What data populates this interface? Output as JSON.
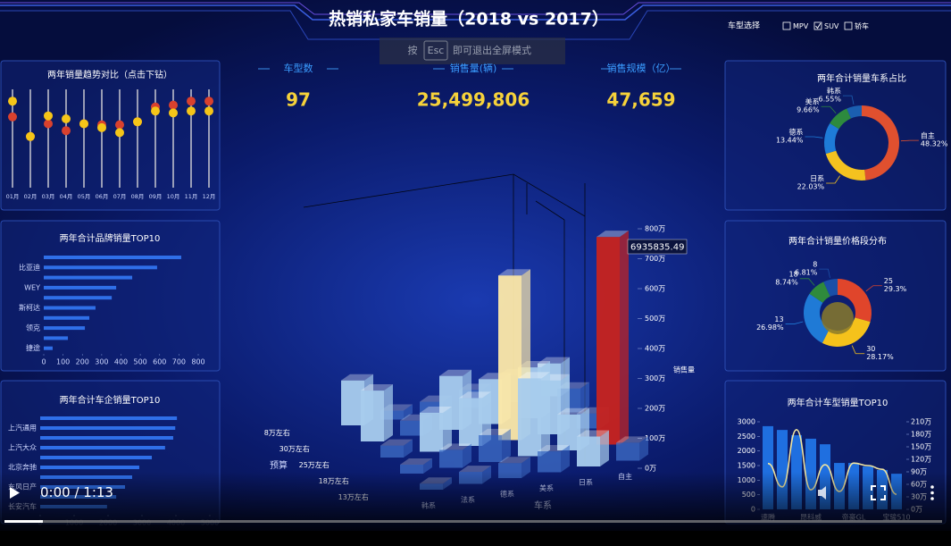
{
  "header": {
    "title": "热销私家车销量（2018 vs 2017）",
    "filter_label": "车型选择",
    "filter_options": [
      {
        "label": "MPV",
        "checked": false
      },
      {
        "label": "SUV",
        "checked": true
      },
      {
        "label": "轿车",
        "checked": false
      }
    ]
  },
  "fullscreen_hint": {
    "prefix": "按",
    "key": "Esc",
    "suffix": "即可退出全屏模式"
  },
  "kpis": [
    {
      "label": "车型数",
      "value": "97"
    },
    {
      "label": "销售量(辆)",
      "value": "25,499,806"
    },
    {
      "label": "销售规模（亿）",
      "value": "47,659"
    }
  ],
  "video": {
    "time": "0:00 / 1:13"
  },
  "chart_data": [
    {
      "type": "dumbbell",
      "title": "两年销量趋势对比（点击下钻）",
      "categories": [
        "01月",
        "02月",
        "03月",
        "04月",
        "05月",
        "06月",
        "07月",
        "08月",
        "09月",
        "10月",
        "11月",
        "12月"
      ],
      "series": [
        {
          "color": "#f5c518",
          "values": [
            88,
            52,
            73,
            70,
            65,
            61,
            56,
            67,
            78,
            76,
            78,
            78
          ]
        },
        {
          "color": "#d9412e",
          "values": [
            72,
            52,
            65,
            58,
            65,
            64,
            64,
            67,
            82,
            84,
            88,
            88
          ]
        }
      ],
      "ylim": [
        0,
        100
      ]
    },
    {
      "type": "hbar",
      "title": "两年合计品牌销量TOP10",
      "categories": [
        null,
        "比亚迪",
        null,
        "WEY",
        null,
        "斯柯达",
        null,
        "领克",
        null,
        "捷途"
      ],
      "values": [
        712,
        587,
        458,
        375,
        352,
        268,
        236,
        213,
        125,
        46
      ],
      "color": "#2f6fe8",
      "xlim": [
        0,
        800
      ],
      "xticks": [
        0,
        100,
        200,
        300,
        400,
        500,
        600,
        700,
        800
      ]
    },
    {
      "type": "hbar",
      "title": "两年合计车企销量TOP10",
      "categories": [
        null,
        "上汽通用",
        null,
        "上汽大众",
        null,
        "北京奔驰",
        null,
        "东风日产",
        null,
        "长安汽车"
      ],
      "values": [
        4030,
        3980,
        3920,
        3680,
        3290,
        2920,
        2710,
        2500,
        2240,
        1970
      ],
      "color": "#2f6fe8",
      "xlim": [
        0,
        5000
      ],
      "xticks": [
        0,
        1000,
        2000,
        3000,
        4000,
        5000
      ]
    },
    {
      "type": "bar3d",
      "categories": [
        "韩系",
        "法系",
        "德系",
        "美系",
        "日系",
        "自主"
      ],
      "xlabel": "车系",
      "zlabel": "预算",
      "ylabel": "销售量",
      "series": [
        {
          "name": "8万左右",
          "values": [
            1500000,
            300000,
            400000,
            600000,
            900000,
            1100000
          ]
        },
        {
          "name": "30万左右",
          "values": [
            1700000,
            500000,
            1800000,
            1500000,
            1700000,
            800000
          ]
        },
        {
          "name": "25万左右",
          "values": [
            400000,
            1300000,
            1600000,
            5500000,
            1800000,
            500000
          ]
        },
        {
          "name": "18万左右",
          "values": [
            300000,
            600000,
            900000,
            2600000,
            1200000,
            6935835.49
          ]
        },
        {
          "name": "13万左右",
          "values": [
            200000,
            400000,
            500000,
            700000,
            1000000,
            600000
          ]
        }
      ],
      "ylim": [
        0,
        8000000
      ],
      "yticks": [
        {
          "value": 0,
          "label": "0万"
        },
        {
          "value": 1000000,
          "label": "100万"
        },
        {
          "value": 2000000,
          "label": "200万"
        },
        {
          "value": 3000000,
          "label": "300万"
        },
        {
          "value": 4000000,
          "label": "400万"
        },
        {
          "value": 5000000,
          "label": "500万"
        },
        {
          "value": 6000000,
          "label": "600万"
        },
        {
          "value": 7000000,
          "label": "700万"
        },
        {
          "value": 8000000,
          "label": "800万"
        }
      ],
      "palette": [
        "#3f6fc8",
        "#a8cdee",
        "#fde9a8",
        "#c8231f"
      ]
    },
    {
      "type": "donut",
      "title": "两年合计销量车系占比",
      "categories": [
        "自主",
        "日系",
        "德系",
        "美系",
        "韩系"
      ],
      "values": [
        48.32,
        22.03,
        13.44,
        9.66,
        6.55
      ],
      "value_labels": [
        "48.32%",
        "22.03%",
        "13.44%",
        "9.66%",
        "6.55%"
      ],
      "colors": [
        "#e0502f",
        "#f4c21f",
        "#1e7bd8",
        "#2d8a3e",
        "#1b5fb0"
      ]
    },
    {
      "type": "donut",
      "title": "两年合计销量价格段分布",
      "categories": [
        "25",
        "30",
        "13",
        "18",
        "8"
      ],
      "values": [
        29.3,
        28.17,
        26.98,
        8.74,
        6.81
      ],
      "value_labels": [
        "29.3%",
        "28.17%",
        "26.98%",
        "8.74%",
        "6.81%"
      ],
      "colors": [
        "#e0452b",
        "#f5c21b",
        "#1f7ad6",
        "#2f8a3c",
        "#1a4fa8"
      ]
    },
    {
      "type": "combo",
      "title": "两年合计车型销量TOP10",
      "categories": [
        "速腾",
        null,
        null,
        "昂科威",
        null,
        null,
        "帝豪GL",
        null,
        null,
        "宝骏510"
      ],
      "series": [
        {
          "color": "#1f6fe0",
          "values": [
            2850,
            2720,
            2540,
            2420,
            2230,
            1590,
            1590,
            1470,
            1350,
            1220
          ]
        },
        {
          "axis": "y2",
          "color": "#f2e6a0",
          "values": [
            1100000,
            540000,
            1910000,
            470000,
            1070000,
            430000,
            1110000,
            1050000,
            960000,
            360000
          ]
        }
      ],
      "ylim": [
        0,
        3000
      ],
      "yticks": [
        0,
        500,
        1000,
        1500,
        2000,
        2500,
        3000
      ],
      "y2lim": [
        0,
        2100000
      ],
      "y2ticks": [
        {
          "value": 0,
          "label": "0万"
        },
        {
          "value": 300000,
          "label": "30万"
        },
        {
          "value": 600000,
          "label": "60万"
        },
        {
          "value": 900000,
          "label": "90万"
        },
        {
          "value": 1200000,
          "label": "120万"
        },
        {
          "value": 1500000,
          "label": "150万"
        },
        {
          "value": 1800000,
          "label": "180万"
        },
        {
          "value": 2100000,
          "label": "210万"
        }
      ]
    }
  ]
}
